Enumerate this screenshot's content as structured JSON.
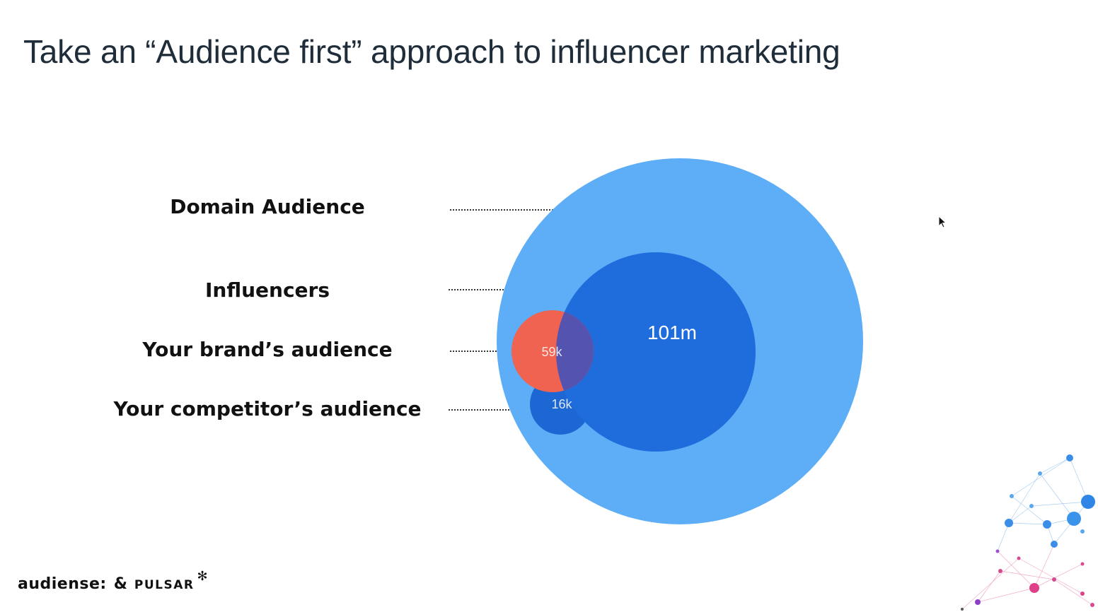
{
  "slide": {
    "title": "Take an “Audience first” approach to influencer marketing"
  },
  "labels": {
    "domain_audience": "Domain Audience",
    "influencers": "Influencers",
    "brand_audience": "Your brand’s audience",
    "competitor_audience": "Your competitor’s audience"
  },
  "circles": {
    "influencers_value": "101m",
    "brand_value": "59k",
    "competitor_value": "16k"
  },
  "colors": {
    "domain": "#5daef7",
    "influencers": "#1f6ddd",
    "brand": "#ef6350",
    "overlap": "#5454b0",
    "competitor": "#1c67d4"
  },
  "footer": {
    "logo_audiense": "audiense:",
    "logo_amp": "&",
    "logo_pulsar": "PULSAR",
    "pulsar_mark": "✻"
  }
}
